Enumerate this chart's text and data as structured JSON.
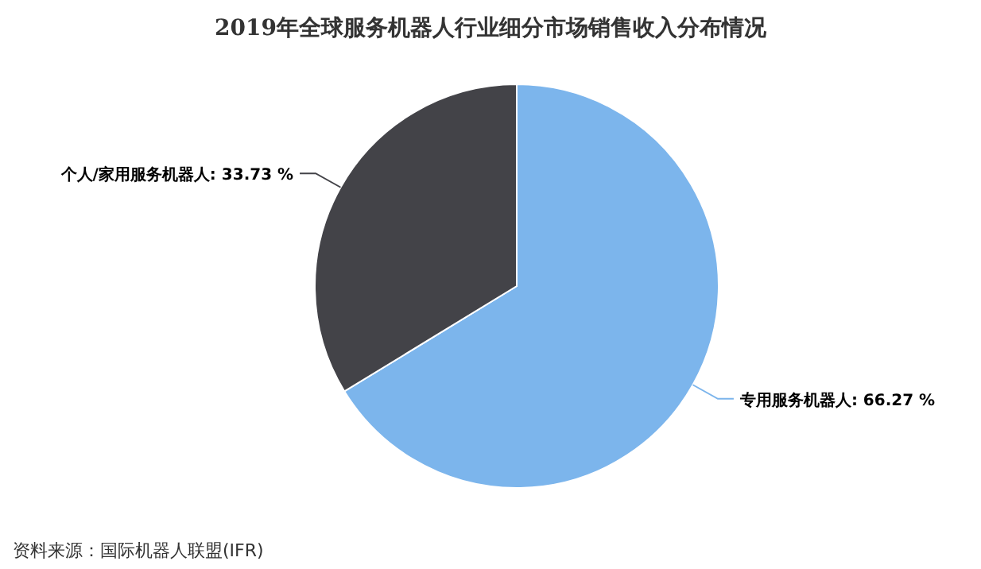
{
  "chart_data": {
    "type": "pie",
    "title": "2019年全球服务机器人行业细分市场销售收入分布情况",
    "categories": [
      "专用服务机器人",
      "个人/家用服务机器人"
    ],
    "values": [
      66.27,
      33.73
    ],
    "value_labels": [
      "66.27 %",
      "33.73 %"
    ],
    "colors": [
      "#7cb5ec",
      "#434348"
    ],
    "annotations": [
      "资料来源：国际机器人联盟(IFR)"
    ]
  }
}
